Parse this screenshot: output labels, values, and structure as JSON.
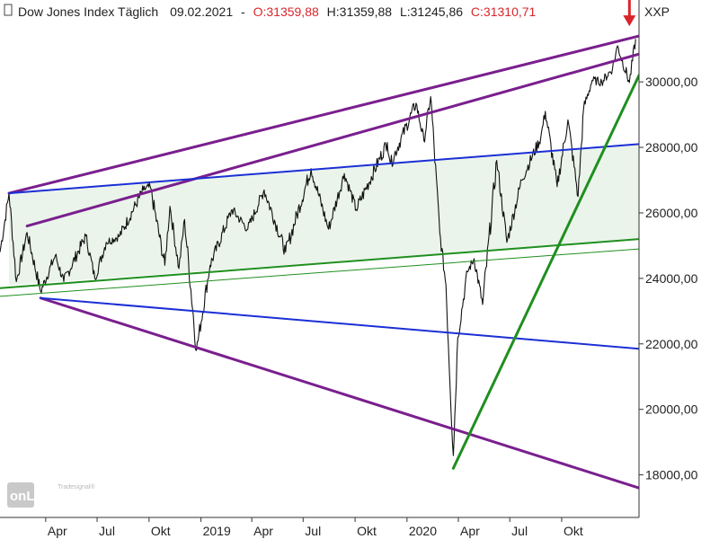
{
  "header": {
    "title": "Dow Jones Index Täglich",
    "date": "09.02.2021",
    "sep": "-",
    "open": "O:31359,88",
    "high": "H:31359,88",
    "low": "L:31245,86",
    "close": "C:31310,71"
  },
  "symbol": "XXP",
  "logo": {
    "text": "onLine",
    "sub": "Tradesignal®"
  },
  "colors": {
    "price": "#111111",
    "purple": "#7a1f8e",
    "blue": "#1b2fd6",
    "green": "#1f8f1f",
    "channel_fill": "#eaf4ea",
    "arrow": "#d8262b",
    "axis": "#333333"
  },
  "chart_data": {
    "type": "line",
    "title": "Dow Jones Index Täglich",
    "y_axis_side": "right",
    "ylim": [
      16700,
      32500
    ],
    "xlim": [
      "2018-01-10",
      "2021-02-15"
    ],
    "yticks": [
      {
        "value": 18000,
        "label": "18000,00"
      },
      {
        "value": 20000,
        "label": "20000,00"
      },
      {
        "value": 22000,
        "label": "22000,00"
      },
      {
        "value": 24000,
        "label": "24000,00"
      },
      {
        "value": 26000,
        "label": "26000,00"
      },
      {
        "value": 28000,
        "label": "28000,00"
      },
      {
        "value": 30000,
        "label": "30000,00"
      }
    ],
    "xticks": [
      {
        "date": "2018-04-01",
        "label": "Apr"
      },
      {
        "date": "2018-07-01",
        "label": "Jul"
      },
      {
        "date": "2018-10-01",
        "label": "Okt"
      },
      {
        "date": "2019-01-01",
        "label": "2019"
      },
      {
        "date": "2019-04-01",
        "label": "Apr"
      },
      {
        "date": "2019-07-01",
        "label": "Jul"
      },
      {
        "date": "2019-10-01",
        "label": "Okt"
      },
      {
        "date": "2020-01-01",
        "label": "2020"
      },
      {
        "date": "2020-04-01",
        "label": "Apr"
      },
      {
        "date": "2020-07-01",
        "label": "Jul"
      },
      {
        "date": "2020-10-01",
        "label": "Okt"
      }
    ],
    "series": [
      {
        "points": [
          [
            "2018-01-10",
            24800
          ],
          [
            "2018-01-26",
            26600
          ],
          [
            "2018-02-08",
            23900
          ],
          [
            "2018-02-27",
            25400
          ],
          [
            "2018-03-23",
            23600
          ],
          [
            "2018-04-18",
            24700
          ],
          [
            "2018-05-03",
            23900
          ],
          [
            "2018-06-11",
            25300
          ],
          [
            "2018-06-27",
            24000
          ],
          [
            "2018-07-17",
            25100
          ],
          [
            "2018-08-10",
            25300
          ],
          [
            "2018-09-21",
            26700
          ],
          [
            "2018-10-03",
            26800
          ],
          [
            "2018-10-29",
            24400
          ],
          [
            "2018-11-07",
            26200
          ],
          [
            "2018-11-23",
            24300
          ],
          [
            "2018-12-03",
            25800
          ],
          [
            "2018-12-24",
            21800
          ],
          [
            "2019-01-17",
            24400
          ],
          [
            "2019-02-25",
            26100
          ],
          [
            "2019-03-25",
            25500
          ],
          [
            "2019-04-23",
            26700
          ],
          [
            "2019-05-31",
            24800
          ],
          [
            "2019-07-15",
            27350
          ],
          [
            "2019-08-15",
            25500
          ],
          [
            "2019-09-12",
            27200
          ],
          [
            "2019-10-03",
            26100
          ],
          [
            "2019-11-27",
            28150
          ],
          [
            "2019-12-03",
            27500
          ],
          [
            "2020-01-17",
            29350
          ],
          [
            "2020-01-31",
            28200
          ],
          [
            "2020-02-12",
            29550
          ],
          [
            "2020-02-28",
            25400
          ],
          [
            "2020-03-10",
            23800
          ],
          [
            "2020-03-23",
            18590
          ],
          [
            "2020-03-31",
            22200
          ],
          [
            "2020-04-17",
            24200
          ],
          [
            "2020-04-29",
            24600
          ],
          [
            "2020-05-14",
            23200
          ],
          [
            "2020-06-08",
            27600
          ],
          [
            "2020-06-26",
            25100
          ],
          [
            "2020-07-22",
            27000
          ],
          [
            "2020-08-25",
            28300
          ],
          [
            "2020-09-02",
            29100
          ],
          [
            "2020-09-23",
            26800
          ],
          [
            "2020-10-12",
            28840
          ],
          [
            "2020-10-30",
            26500
          ],
          [
            "2020-11-09",
            29200
          ],
          [
            "2020-11-24",
            30050
          ],
          [
            "2020-12-11",
            30000
          ],
          [
            "2020-12-30",
            30400
          ],
          [
            "2021-01-08",
            31100
          ],
          [
            "2021-01-29",
            29980
          ],
          [
            "2021-02-09",
            31310
          ]
        ]
      }
    ],
    "trendlines": [
      {
        "color": "purple",
        "from": [
          "2018-01-26",
          26600
        ],
        "to": [
          "2021-02-15",
          31400
        ],
        "width": 3
      },
      {
        "color": "purple",
        "from": [
          "2018-02-27",
          25600
        ],
        "to": [
          "2021-02-15",
          30850
        ],
        "width": 3
      },
      {
        "color": "purple",
        "from": [
          "2018-03-23",
          23400
        ],
        "to": [
          "2021-02-15",
          17600
        ],
        "width": 3
      },
      {
        "color": "blue",
        "from": [
          "2018-01-26",
          26600
        ],
        "to": [
          "2021-02-15",
          28100
        ],
        "width": 2
      },
      {
        "color": "blue",
        "from": [
          "2018-03-23",
          23400
        ],
        "to": [
          "2021-02-15",
          21850
        ],
        "width": 2
      },
      {
        "color": "green",
        "from": [
          "2018-01-10",
          23700
        ],
        "to": [
          "2021-02-15",
          25200
        ],
        "width": 2
      },
      {
        "color": "green",
        "from": [
          "2018-01-10",
          23450
        ],
        "to": [
          "2021-02-15",
          24900
        ],
        "width": 1
      },
      {
        "color": "green",
        "from": [
          "2020-03-23",
          18200
        ],
        "to": [
          "2021-02-15",
          30200
        ],
        "width": 3
      }
    ],
    "channel": {
      "upper": {
        "from": [
          "2018-01-26",
          26600
        ],
        "to": [
          "2021-02-15",
          28100
        ]
      },
      "lower": {
        "from": [
          "2018-01-26",
          23790
        ],
        "to": [
          "2021-02-15",
          25200
        ]
      }
    },
    "markers": [
      {
        "type": "arrow-down",
        "date": "2021-01-29",
        "value": 31700
      }
    ],
    "grid": false
  }
}
